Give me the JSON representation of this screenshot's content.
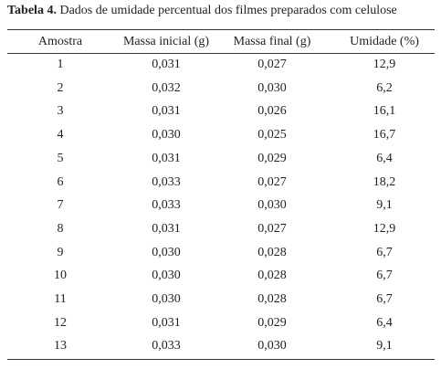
{
  "title": {
    "label": "Tabela 4.",
    "text": "Dados de umidade percentual dos filmes preparados com celulose"
  },
  "table": {
    "header": [
      "Amostra",
      "Massa inicial (g)",
      "Massa final (g)",
      "Umidade (%)"
    ],
    "rows": [
      [
        "1",
        "0,031",
        "0,027",
        "12,9"
      ],
      [
        "2",
        "0,032",
        "0,030",
        "6,2"
      ],
      [
        "3",
        "0,031",
        "0,026",
        "16,1"
      ],
      [
        "4",
        "0,030",
        "0,025",
        "16,7"
      ],
      [
        "5",
        "0,031",
        "0,029",
        "6,4"
      ],
      [
        "6",
        "0,033",
        "0,027",
        "18,2"
      ],
      [
        "7",
        "0,033",
        "0,030",
        "9,1"
      ],
      [
        "8",
        "0,031",
        "0,027",
        "12,9"
      ],
      [
        "9",
        "0,030",
        "0,028",
        "6,7"
      ],
      [
        "10",
        "0,030",
        "0,028",
        "6,7"
      ],
      [
        "11",
        "0,030",
        "0,028",
        "6,7"
      ],
      [
        "12",
        "0,031",
        "0,029",
        "6,4"
      ],
      [
        "13",
        "0,033",
        "0,030",
        "9,1"
      ]
    ]
  }
}
